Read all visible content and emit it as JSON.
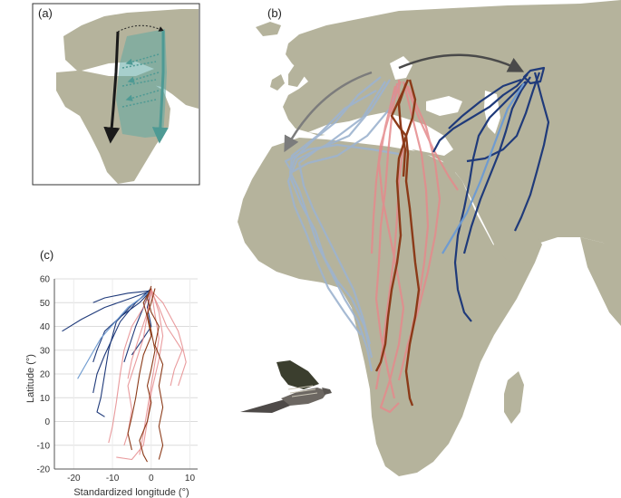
{
  "figure": {
    "panels": [
      {
        "label": "(a)"
      },
      {
        "label": "(b)"
      },
      {
        "label": "(c)"
      }
    ]
  },
  "chart_data": {
    "type": "line",
    "xlabel": "Standardized longitude (°)",
    "ylabel": "Latitude (°)",
    "xlim": [
      -25,
      12
    ],
    "ylim": [
      -20,
      60
    ],
    "x_ticks": [
      -20,
      -10,
      0,
      10
    ],
    "y_ticks": [
      -20,
      -10,
      0,
      10,
      20,
      30,
      40,
      50,
      60
    ],
    "grid": "horizontal",
    "colors": {
      "western": "#9db3cf",
      "central": "#e58a8c",
      "central_highlight": "#8b3a18",
      "eastern": "#1f3a7a",
      "eastern_light": "#6f9bd0"
    },
    "series": [
      {
        "group": "eastern",
        "color": "#1f3a7a",
        "points": [
          [
            0,
            55
          ],
          [
            -5,
            52
          ],
          [
            -12,
            48
          ],
          [
            -18,
            43
          ],
          [
            -23,
            38
          ]
        ]
      },
      {
        "group": "eastern",
        "color": "#1f3a7a",
        "points": [
          [
            0,
            55
          ],
          [
            -3,
            50
          ],
          [
            -8,
            44
          ],
          [
            -12,
            38
          ],
          [
            -14,
            30
          ],
          [
            -15,
            25
          ]
        ]
      },
      {
        "group": "eastern",
        "color": "#1f3a7a",
        "points": [
          [
            0,
            56
          ],
          [
            -4,
            50
          ],
          [
            -8,
            42
          ],
          [
            -10,
            35
          ],
          [
            -12,
            28
          ],
          [
            -14,
            20
          ],
          [
            -15,
            12
          ]
        ]
      },
      {
        "group": "eastern",
        "color": "#1f3a7a",
        "points": [
          [
            0,
            55
          ],
          [
            -5,
            49
          ],
          [
            -9,
            42
          ],
          [
            -11,
            30
          ],
          [
            -12,
            20
          ],
          [
            -13,
            10
          ],
          [
            -14,
            4
          ],
          [
            -12,
            2
          ]
        ]
      },
      {
        "group": "eastern",
        "color": "#1f3a7a",
        "points": [
          [
            0,
            56
          ],
          [
            -2,
            48
          ],
          [
            -4,
            40
          ],
          [
            -6,
            30
          ],
          [
            -7,
            25
          ]
        ]
      },
      {
        "group": "eastern",
        "color": "#1f3a7a",
        "points": [
          [
            0,
            55
          ],
          [
            -1,
            48
          ],
          [
            0,
            40
          ],
          [
            -2,
            35
          ],
          [
            -5,
            28
          ]
        ]
      },
      {
        "group": "eastern",
        "color": "#1f3a7a",
        "points": [
          [
            0,
            55
          ],
          [
            -6,
            54
          ],
          [
            -12,
            52
          ],
          [
            -15,
            50
          ]
        ]
      },
      {
        "group": "eastern",
        "color": "#6f9bd0",
        "points": [
          [
            0,
            55
          ],
          [
            -6,
            48
          ],
          [
            -13,
            35
          ],
          [
            -19,
            18
          ]
        ]
      },
      {
        "group": "central",
        "color": "#e58a8c",
        "points": [
          [
            0,
            55
          ],
          [
            2,
            48
          ],
          [
            4,
            40
          ],
          [
            6,
            35
          ],
          [
            8,
            30
          ],
          [
            6,
            22
          ],
          [
            5,
            15
          ]
        ]
      },
      {
        "group": "central",
        "color": "#e58a8c",
        "points": [
          [
            0,
            55
          ],
          [
            3,
            50
          ],
          [
            5,
            44
          ],
          [
            7,
            38
          ],
          [
            8,
            32
          ],
          [
            9,
            25
          ],
          [
            8,
            20
          ],
          [
            7,
            15
          ]
        ]
      },
      {
        "group": "central",
        "color": "#e58a8c",
        "points": [
          [
            0,
            56
          ],
          [
            -1,
            45
          ],
          [
            -2,
            35
          ],
          [
            -4,
            25
          ],
          [
            -6,
            15
          ],
          [
            -5,
            5
          ],
          [
            -6,
            -5
          ],
          [
            -7,
            -10
          ]
        ]
      },
      {
        "group": "central",
        "color": "#e58a8c",
        "points": [
          [
            0,
            55
          ],
          [
            -2,
            48
          ],
          [
            -5,
            40
          ],
          [
            -7,
            30
          ],
          [
            -8,
            20
          ],
          [
            -9,
            8
          ],
          [
            -10,
            -2
          ],
          [
            -11,
            -9
          ]
        ]
      },
      {
        "group": "central",
        "color": "#e58a8c",
        "points": [
          [
            0,
            55
          ],
          [
            1,
            45
          ],
          [
            2,
            35
          ],
          [
            1,
            25
          ],
          [
            0,
            15
          ],
          [
            -1,
            5
          ],
          [
            -2,
            -5
          ],
          [
            -3,
            -14
          ]
        ]
      },
      {
        "group": "central",
        "color": "#e58a8c",
        "points": [
          [
            0,
            55
          ],
          [
            -1,
            46
          ],
          [
            -3,
            36
          ],
          [
            -5,
            26
          ],
          [
            -6,
            18
          ]
        ]
      },
      {
        "group": "central",
        "color": "#e58a8c",
        "points": [
          [
            0,
            56
          ],
          [
            2,
            46
          ],
          [
            3,
            36
          ],
          [
            2,
            26
          ],
          [
            0,
            12
          ],
          [
            -1,
            0
          ],
          [
            -2,
            -10
          ],
          [
            -5,
            -16
          ],
          [
            -9,
            -15
          ]
        ]
      },
      {
        "group": "central",
        "color": "#8b3a18",
        "points": [
          [
            1,
            56
          ],
          [
            0,
            50
          ],
          [
            -1,
            45
          ],
          [
            0,
            38
          ],
          [
            1,
            30
          ],
          [
            0,
            22
          ],
          [
            -1,
            15
          ],
          [
            0,
            8
          ],
          [
            -1,
            0
          ],
          [
            -3,
            -8
          ],
          [
            -2,
            -14
          ],
          [
            -1,
            -17
          ]
        ]
      },
      {
        "group": "central",
        "color": "#8b3a18",
        "points": [
          [
            0,
            57
          ],
          [
            -1,
            52
          ],
          [
            0,
            46
          ],
          [
            2,
            40
          ],
          [
            1,
            32
          ],
          [
            3,
            24
          ],
          [
            2,
            15
          ],
          [
            3,
            6
          ],
          [
            2,
            -2
          ],
          [
            3,
            -10
          ],
          [
            2,
            -16
          ]
        ]
      },
      {
        "group": "central",
        "color": "#8b3a18",
        "points": [
          [
            0,
            56
          ],
          [
            -2,
            50
          ],
          [
            -1,
            44
          ],
          [
            0,
            36
          ],
          [
            -2,
            28
          ],
          [
            -3,
            20
          ],
          [
            -4,
            10
          ],
          [
            -5,
            2
          ],
          [
            -6,
            -5
          ],
          [
            -5,
            -12
          ]
        ]
      }
    ]
  }
}
